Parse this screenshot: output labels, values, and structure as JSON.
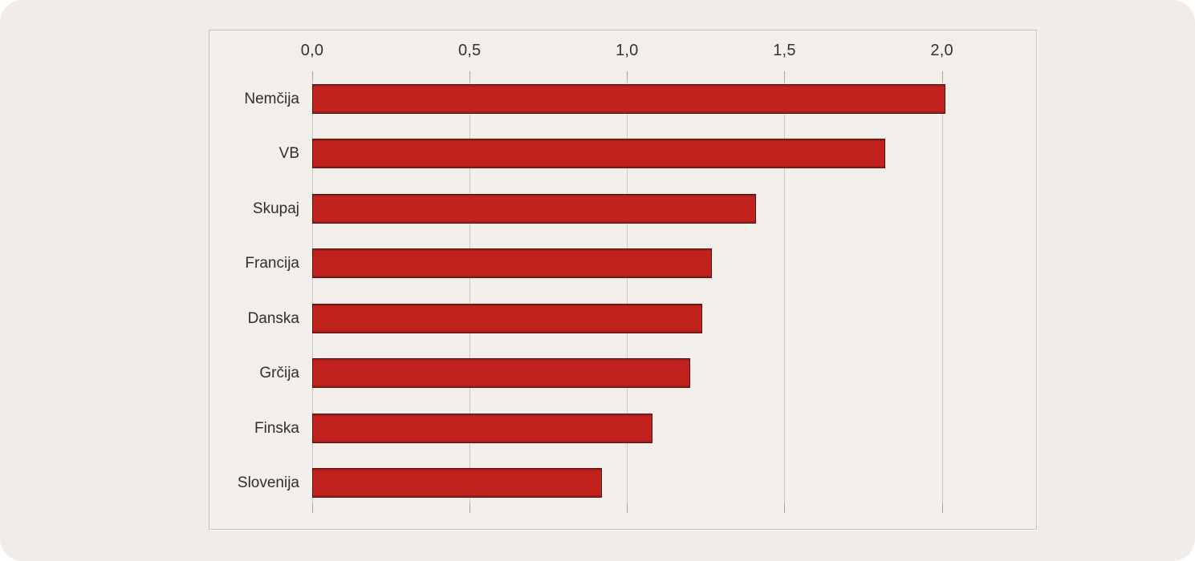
{
  "page": {
    "background_color": "#ffffff",
    "canvas_color": "#f1ece7",
    "panel_background": "#f2eee9",
    "panel_border_color": "#c9c2ba"
  },
  "chart_data": {
    "type": "bar",
    "orientation": "horizontal",
    "title": "",
    "xlabel": "",
    "ylabel": "",
    "categories": [
      "Nemčija",
      "VB",
      "Skupaj",
      "Francija",
      "Danska",
      "Grčija",
      "Finska",
      "Slovenija"
    ],
    "values": [
      2.01,
      1.82,
      1.41,
      1.27,
      1.24,
      1.2,
      1.08,
      0.92
    ],
    "xlim": [
      0,
      2.3
    ],
    "x_ticks": [
      0,
      0.5,
      1,
      1.5,
      2
    ],
    "x_tick_labels": [
      "0,0",
      "0,5",
      "1,0",
      "1,5",
      "2,0"
    ],
    "tick_position": "top",
    "grid": true,
    "legend": false,
    "bar_color": "#c1221e",
    "bar_border_color": "#511310",
    "grid_color": "#ccc7c0",
    "tick_color": "#a9a39b",
    "axis_text_color": "#333333"
  }
}
